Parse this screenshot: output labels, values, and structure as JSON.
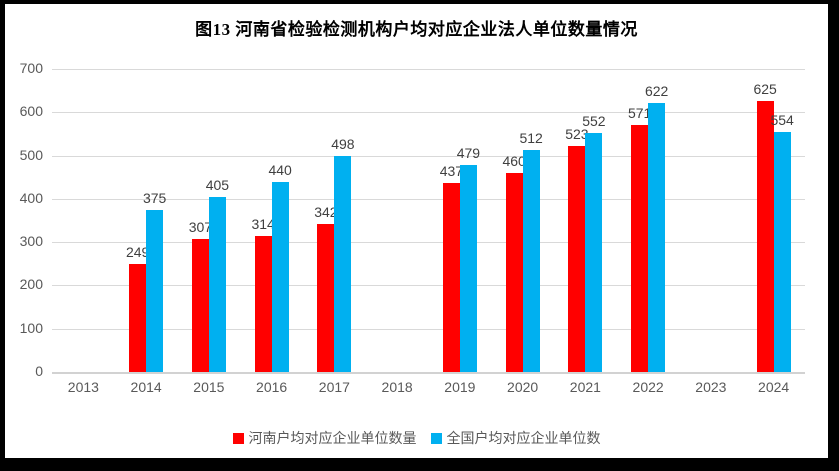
{
  "chart_data": {
    "type": "bar",
    "title": "图13 河南省检验检测机构户均对应企业法人单位数量情况",
    "categories": [
      "2013",
      "2014",
      "2015",
      "2016",
      "2017",
      "2018",
      "2019",
      "2020",
      "2021",
      "2022",
      "2023",
      "2024"
    ],
    "series": [
      {
        "name": "河南户均对应企业单位数量",
        "color": "#FF0000",
        "values": [
          null,
          249,
          307,
          314,
          342,
          null,
          437,
          460,
          523,
          571,
          null,
          625
        ]
      },
      {
        "name": "全国户均对应企业单位数",
        "color": "#00B0F0",
        "values": [
          null,
          375,
          405,
          440,
          498,
          null,
          479,
          512,
          552,
          622,
          null,
          554
        ]
      }
    ],
    "xlabel": "",
    "ylabel": "",
    "ylim": [
      0,
      700
    ],
    "yticks": [
      0,
      100,
      200,
      300,
      400,
      500,
      600,
      700
    ],
    "grid": "horizontal",
    "gridline_color": "#D9D9D9",
    "axis_label_color": "#595959",
    "data_label_color": "#3F3F3F",
    "data_labels": true,
    "legend_position": "bottom",
    "frame_color": "#000000",
    "plot_background": "#FFFFFF"
  }
}
